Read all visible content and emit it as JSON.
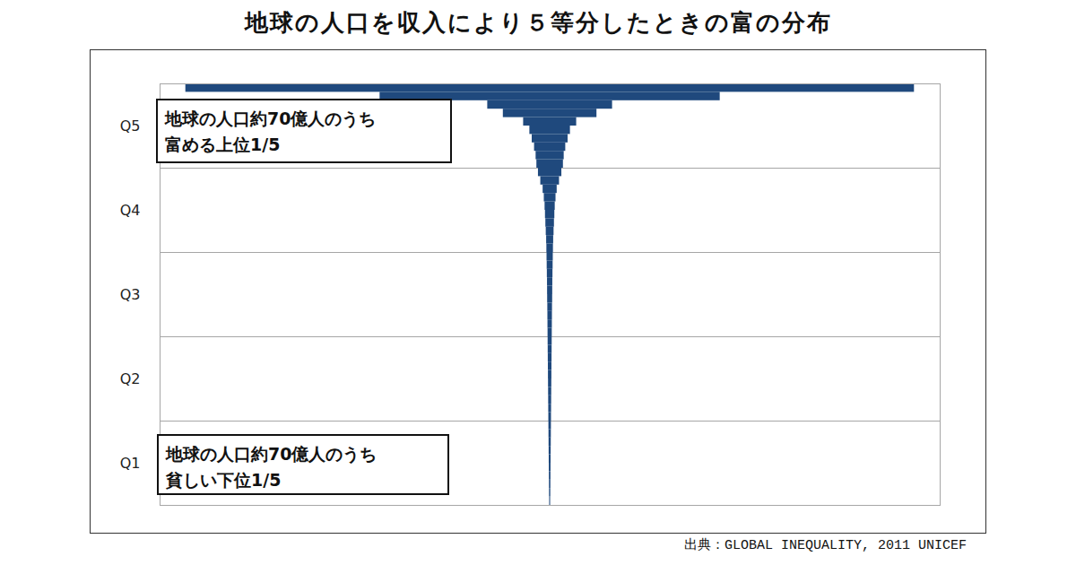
{
  "chart_data": {
    "type": "bar",
    "orientation": "horizontal",
    "title": "地球の人口を収入により５等分したときの富の分布",
    "source": "出典：GLOBAL INEQUALITY, 2011 UNICEF",
    "annotations": [
      {
        "text": [
          "地球の人口約70億人のうち",
          "富める上位1/5"
        ]
      },
      {
        "text": [
          "地球の人口約70億人のうち",
          "貧しい下位1/5"
        ]
      }
    ],
    "y": [
      99,
      97,
      95,
      93,
      91,
      89,
      87,
      85,
      83,
      81,
      79,
      77,
      75,
      73,
      71,
      69,
      67,
      65,
      63,
      61,
      59,
      57,
      55,
      53,
      51,
      49,
      47,
      45,
      43,
      41,
      39,
      37,
      35,
      33,
      31,
      29,
      27,
      25,
      23,
      21,
      19,
      17,
      15,
      13,
      11,
      9,
      7,
      5,
      3,
      1
    ],
    "values": [
      46.7,
      21.8,
      8.0,
      6.0,
      3.4,
      2.6,
      2.3,
      2.0,
      1.8,
      1.7,
      1.5,
      1.2,
      0.9,
      0.75,
      0.65,
      0.6,
      0.55,
      0.5,
      0.45,
      0.42,
      0.4,
      0.38,
      0.36,
      0.34,
      0.33,
      0.32,
      0.3,
      0.29,
      0.28,
      0.27,
      0.26,
      0.25,
      0.24,
      0.23,
      0.22,
      0.21,
      0.2,
      0.19,
      0.18,
      0.17,
      0.16,
      0.15,
      0.14,
      0.13,
      0.12,
      0.11,
      0.1,
      0.09,
      0.08,
      0.06
    ],
    "color": "#1f497d",
    "xlim": [
      -50,
      50
    ],
    "ylim": [
      0,
      100
    ],
    "yticks": [
      {
        "value": 10,
        "label": "Q1"
      },
      {
        "value": 30,
        "label": "Q2"
      },
      {
        "value": 50,
        "label": "Q3"
      },
      {
        "value": 70,
        "label": "Q4"
      },
      {
        "value": 90,
        "label": "Q5"
      }
    ],
    "grid": true,
    "tick_labels": "y"
  }
}
